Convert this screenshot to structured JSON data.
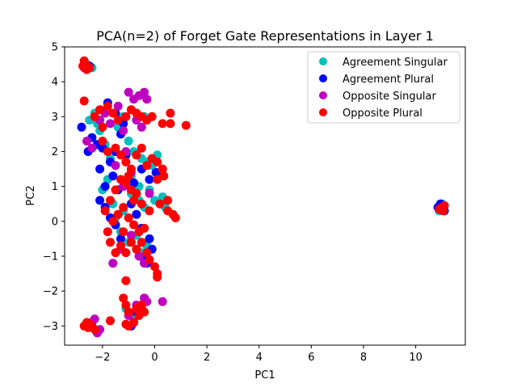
{
  "chart_data": {
    "type": "scatter",
    "title": "PCA(n=2) of Forget Gate Representations in Layer 1",
    "xlabel": "PC1",
    "ylabel": "PC2",
    "xlim": [
      -3.45,
      11.9
    ],
    "ylim": [
      -3.55,
      5.0
    ],
    "x_ticks": [
      -2,
      0,
      2,
      4,
      6,
      8,
      10
    ],
    "x_tick_labels": [
      "−2",
      "0",
      "2",
      "4",
      "6",
      "8",
      "10"
    ],
    "y_ticks": [
      -3,
      -2,
      -1,
      0,
      1,
      2,
      3,
      4,
      5
    ],
    "y_tick_labels": [
      "−3",
      "−2",
      "−1",
      "0",
      "1",
      "2",
      "3",
      "4",
      "5"
    ],
    "grid": false,
    "legend_position": "top-right",
    "series": [
      {
        "name": "Agreement Singular",
        "color": "#00bfbf",
        "points": [
          [
            -2.5,
            2.9
          ],
          [
            -2.3,
            3.1
          ],
          [
            -2.1,
            2.6
          ],
          [
            -1.9,
            2.2
          ],
          [
            -1.7,
            1.8
          ],
          [
            -1.4,
            2.7
          ],
          [
            -1.2,
            3.0
          ],
          [
            -1.0,
            2.3
          ],
          [
            -0.8,
            2.0
          ],
          [
            -0.5,
            1.8
          ],
          [
            -0.3,
            1.7
          ],
          [
            -0.1,
            1.6
          ],
          [
            0.1,
            1.9
          ],
          [
            0.3,
            1.5
          ],
          [
            -0.2,
            0.9
          ],
          [
            0.0,
            0.6
          ],
          [
            0.3,
            0.7
          ],
          [
            0.4,
            0.4
          ],
          [
            0.5,
            0.3
          ],
          [
            -0.4,
            0.4
          ],
          [
            -0.6,
            0.6
          ],
          [
            -0.9,
            0.8
          ],
          [
            -1.2,
            0.3
          ],
          [
            -1.5,
            0.1
          ],
          [
            -1.3,
            -0.3
          ],
          [
            -1.0,
            -0.6
          ],
          [
            -0.7,
            -0.4
          ],
          [
            -0.5,
            -0.9
          ],
          [
            -0.3,
            -0.7
          ],
          [
            -1.8,
            1.2
          ],
          [
            -2.0,
            0.9
          ],
          [
            -1.6,
            0.5
          ],
          [
            -0.9,
            1.3
          ],
          [
            -0.6,
            1.0
          ],
          [
            -2.6,
            4.5
          ],
          [
            -2.4,
            4.4
          ],
          [
            -1.1,
            -2.5
          ],
          [
            -0.8,
            -2.8
          ],
          [
            -2.5,
            -3.0
          ],
          [
            -1.3,
            2.9
          ],
          [
            11.0,
            0.5
          ],
          [
            10.9,
            0.3
          ],
          [
            11.05,
            0.4
          ],
          [
            -0.4,
            3.0
          ],
          [
            -2.2,
            2.8
          ]
        ]
      },
      {
        "name": "Agreement Plural",
        "color": "#0000ff",
        "points": [
          [
            -2.8,
            2.7
          ],
          [
            -2.55,
            2.0
          ],
          [
            -2.4,
            2.4
          ],
          [
            -2.2,
            2.2
          ],
          [
            -2.0,
            2.1
          ],
          [
            -1.8,
            3.4
          ],
          [
            -1.7,
            1.7
          ],
          [
            -1.5,
            2.0
          ],
          [
            -1.3,
            2.5
          ],
          [
            -1.1,
            1.9
          ],
          [
            -2.1,
            0.6
          ],
          [
            -1.9,
            0.4
          ],
          [
            -1.7,
            0.1
          ],
          [
            -1.5,
            -0.1
          ],
          [
            -1.3,
            -0.5
          ],
          [
            -0.9,
            0.5
          ],
          [
            -0.7,
            0.2
          ],
          [
            -0.5,
            -0.2
          ],
          [
            -0.4,
            -1.1
          ],
          [
            -0.3,
            -1.2
          ],
          [
            -0.2,
            -0.5
          ],
          [
            -0.1,
            -0.8
          ],
          [
            0.05,
            1.4
          ],
          [
            -0.2,
            1.2
          ],
          [
            -0.5,
            1.5
          ],
          [
            -0.8,
            1.1
          ],
          [
            -1.4,
            0.9
          ],
          [
            -1.6,
            1.3
          ],
          [
            -1.9,
            1.0
          ],
          [
            -2.1,
            1.5
          ],
          [
            -2.5,
            4.45
          ],
          [
            -2.7,
            4.5
          ],
          [
            -2.4,
            -2.9
          ],
          [
            -0.9,
            -3.0
          ],
          [
            -0.7,
            -2.6
          ],
          [
            10.95,
            0.5
          ],
          [
            11.1,
            0.3
          ],
          [
            10.85,
            0.4
          ],
          [
            -1.2,
            2.8
          ],
          [
            -1.5,
            3.1
          ]
        ]
      },
      {
        "name": "Opposite Singular",
        "color": "#bf00bf",
        "points": [
          [
            -2.6,
            2.3
          ],
          [
            -2.4,
            2.1
          ],
          [
            -2.1,
            2.9
          ],
          [
            -1.9,
            3.1
          ],
          [
            -1.7,
            2.8
          ],
          [
            -1.4,
            3.3
          ],
          [
            -1.2,
            2.6
          ],
          [
            -1.0,
            3.7
          ],
          [
            -0.8,
            3.5
          ],
          [
            -0.6,
            3.6
          ],
          [
            -0.4,
            3.7
          ],
          [
            -0.3,
            3.5
          ],
          [
            -0.5,
            2.7
          ],
          [
            -0.7,
            2.9
          ],
          [
            -1.5,
            1.6
          ],
          [
            -1.2,
            1.0
          ],
          [
            -0.9,
            -0.4
          ],
          [
            -0.6,
            -1.0
          ],
          [
            -0.4,
            -1.2
          ],
          [
            -1.3,
            -0.8
          ],
          [
            -1.6,
            -1.2
          ],
          [
            -0.4,
            -2.2
          ],
          [
            -0.3,
            -2.3
          ],
          [
            -0.5,
            -2.5
          ],
          [
            -0.7,
            -2.4
          ],
          [
            -2.3,
            -2.8
          ],
          [
            -2.2,
            -3.2
          ],
          [
            -2.1,
            -3.1
          ],
          [
            -1.0,
            -2.7
          ],
          [
            0.3,
            -2.3
          ],
          [
            -1.1,
            2.0
          ],
          [
            -0.9,
            1.4
          ],
          [
            -0.2,
            0.8
          ],
          [
            -2.7,
            4.4
          ]
        ]
      },
      {
        "name": "Opposite Plural",
        "color": "#ff0000",
        "points": [
          [
            -2.7,
            4.6
          ],
          [
            -2.75,
            4.45
          ],
          [
            -2.6,
            4.35
          ],
          [
            -2.5,
            4.4
          ],
          [
            -2.65,
            4.5
          ],
          [
            -2.7,
            3.45
          ],
          [
            -2.3,
            3.0
          ],
          [
            -2.1,
            3.2
          ],
          [
            -2.0,
            2.7
          ],
          [
            -1.8,
            3.3
          ],
          [
            -1.6,
            3.1
          ],
          [
            -1.4,
            2.9
          ],
          [
            -1.1,
            3.0
          ],
          [
            -0.9,
            3.2
          ],
          [
            -0.7,
            3.1
          ],
          [
            -0.5,
            3.0
          ],
          [
            -0.3,
            2.9
          ],
          [
            -0.1,
            3.0
          ],
          [
            0.3,
            2.8
          ],
          [
            0.6,
            3.1
          ],
          [
            0.6,
            2.8
          ],
          [
            1.2,
            2.75
          ],
          [
            -2.0,
            2.3
          ],
          [
            -1.8,
            2.0
          ],
          [
            -1.5,
            2.1
          ],
          [
            -1.3,
            1.9
          ],
          [
            -1.1,
            1.7
          ],
          [
            -0.9,
            1.5
          ],
          [
            -0.7,
            1.9
          ],
          [
            -0.5,
            2.1
          ],
          [
            -0.3,
            1.6
          ],
          [
            -0.1,
            1.8
          ],
          [
            0.1,
            1.7
          ],
          [
            0.3,
            1.5
          ],
          [
            0.35,
            1.3
          ],
          [
            0.1,
            1.2
          ],
          [
            -0.2,
            0.3
          ],
          [
            0.2,
            0.5
          ],
          [
            0.5,
            0.3
          ],
          [
            0.7,
            0.2
          ],
          [
            0.8,
            0.1
          ],
          [
            0.5,
            0.6
          ],
          [
            -0.5,
            0.5
          ],
          [
            -0.7,
            0.8
          ],
          [
            -0.9,
            0.9
          ],
          [
            -1.1,
            1.1
          ],
          [
            -1.3,
            1.2
          ],
          [
            -1.5,
            0.9
          ],
          [
            -1.7,
            0.6
          ],
          [
            -1.9,
            0.3
          ],
          [
            -1.6,
            0.0
          ],
          [
            -1.4,
            0.2
          ],
          [
            -1.2,
            0.4
          ],
          [
            -1.0,
            0.1
          ],
          [
            -0.8,
            -0.1
          ],
          [
            -0.6,
            -0.3
          ],
          [
            -0.4,
            -0.2
          ],
          [
            -1.8,
            -0.3
          ],
          [
            -1.7,
            -0.6
          ],
          [
            -1.5,
            -0.9
          ],
          [
            -1.3,
            -0.7
          ],
          [
            -1.1,
            -0.9
          ],
          [
            -0.9,
            -0.6
          ],
          [
            -0.7,
            -0.8
          ],
          [
            -0.5,
            -0.6
          ],
          [
            -0.3,
            -0.9
          ],
          [
            -0.2,
            -1.1
          ],
          [
            0.0,
            -1.3
          ],
          [
            0.1,
            -1.5
          ],
          [
            0.1,
            -1.6
          ],
          [
            -1.1,
            -1.7
          ],
          [
            -1.2,
            -2.2
          ],
          [
            -1.1,
            -2.4
          ],
          [
            -1.0,
            -2.6
          ],
          [
            -0.8,
            -2.9
          ],
          [
            -0.6,
            -2.7
          ],
          [
            -0.5,
            -2.4
          ],
          [
            -0.4,
            -2.6
          ],
          [
            -0.7,
            -2.5
          ],
          [
            -1.0,
            -3.0
          ],
          [
            -1.1,
            -2.95
          ],
          [
            -1.7,
            -2.85
          ],
          [
            -2.6,
            -2.9
          ],
          [
            -2.55,
            -3.05
          ],
          [
            -2.4,
            -3.0
          ],
          [
            -2.3,
            -3.1
          ],
          [
            -2.5,
            -2.95
          ],
          [
            -2.7,
            -3.0
          ],
          [
            11.0,
            0.4
          ],
          [
            10.9,
            0.35
          ],
          [
            11.05,
            0.3
          ],
          [
            11.1,
            0.45
          ],
          [
            -1.0,
            1.3
          ],
          [
            -0.8,
            0.6
          ],
          [
            -1.2,
            -0.3
          ]
        ]
      }
    ]
  }
}
